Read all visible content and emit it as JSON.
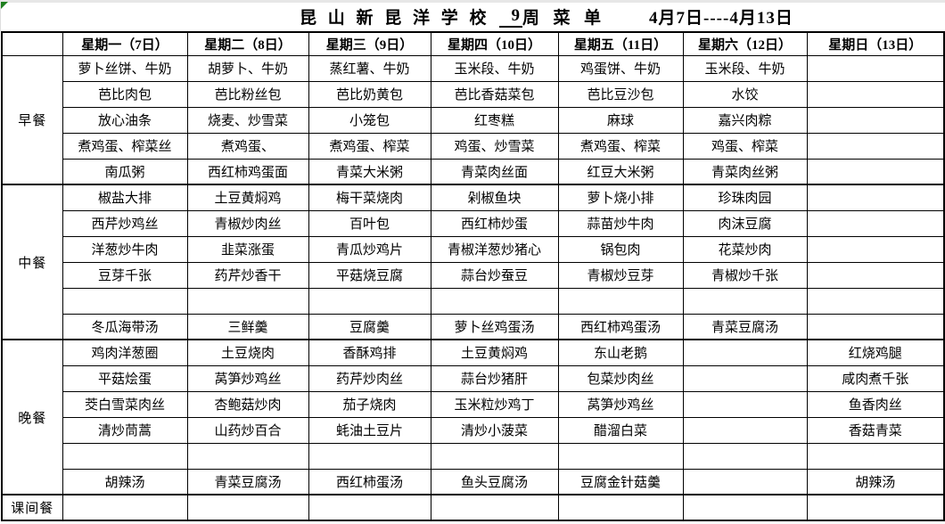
{
  "title": {
    "school": "昆 山 新 昆 洋 学 校",
    "week_number": "9",
    "week_label": "周  菜  单",
    "date_range": "4月7日----4月13日"
  },
  "table": {
    "corner_header": "",
    "day_headers": [
      "星期一（7日）",
      "星期二（8日）",
      "星期三（9日）",
      "星期四（10日）",
      "星期五（11日）",
      "星期六（12日）",
      "星期日（13日）"
    ],
    "sections": [
      {
        "key": "breakfast",
        "label": "早餐",
        "rows": [
          [
            "萝卜丝饼、牛奶",
            "胡萝卜、牛奶",
            "蒸红薯、牛奶",
            "玉米段、牛奶",
            "鸡蛋饼、牛奶",
            "玉米段、牛奶",
            ""
          ],
          [
            "芭比肉包",
            "芭比粉丝包",
            "芭比奶黄包",
            "芭比香菇菜包",
            "芭比豆沙包",
            "水饺",
            ""
          ],
          [
            "放心油条",
            "烧麦、炒雪菜",
            "小笼包",
            "红枣糕",
            "麻球",
            "嘉兴肉粽",
            ""
          ],
          [
            "煮鸡蛋、榨菜丝",
            "煮鸡蛋、",
            "煮鸡蛋、榨菜",
            "鸡蛋、炒雪菜",
            "煮鸡蛋、榨菜",
            "鸡蛋、榨菜",
            ""
          ],
          [
            "南瓜粥",
            "西红柿鸡蛋面",
            "青菜大米粥",
            "青菜肉丝面",
            "红豆大米粥",
            "青菜肉丝粥",
            ""
          ]
        ]
      },
      {
        "key": "lunch",
        "label": "中餐",
        "rows": [
          [
            "椒盐大排",
            "土豆黄焖鸡",
            "梅干菜烧肉",
            "剁椒鱼块",
            "萝卜烧小排",
            "珍珠肉园",
            ""
          ],
          [
            "西芹炒鸡丝",
            "青椒炒肉丝",
            "百叶包",
            "西红柿炒蛋",
            "蒜苗炒牛肉",
            "肉沫豆腐",
            ""
          ],
          [
            "洋葱炒牛肉",
            "韭菜涨蛋",
            "青瓜炒鸡片",
            "青椒洋葱炒猪心",
            "锅包肉",
            "花菜炒肉",
            ""
          ],
          [
            "豆芽千张",
            "药芹炒香干",
            "平菇烧豆腐",
            "蒜台炒蚕豆",
            "青椒炒豆芽",
            "青椒炒千张",
            ""
          ],
          [
            "",
            "",
            "",
            "",
            "",
            "",
            ""
          ],
          [
            "冬瓜海带汤",
            "三鲜羹",
            "豆腐羹",
            "萝卜丝鸡蛋汤",
            "西红柿鸡蛋汤",
            "青菜豆腐汤",
            ""
          ]
        ]
      },
      {
        "key": "dinner",
        "label": "晚餐",
        "rows": [
          [
            "鸡肉洋葱圈",
            "土豆烧肉",
            "香酥鸡排",
            "土豆黄焖鸡",
            "东山老鹅",
            "",
            "红烧鸡腿"
          ],
          [
            "平菇烩蛋",
            "莴笋炒鸡丝",
            "药芹炒肉丝",
            "蒜台炒猪肝",
            "包菜炒肉丝",
            "",
            "咸肉煮千张"
          ],
          [
            "茭白雪菜肉丝",
            "杏鲍菇炒肉",
            "茄子烧肉",
            "玉米粒炒鸡丁",
            "莴笋炒鸡丝",
            "",
            "鱼香肉丝"
          ],
          [
            "清炒茼蒿",
            "山药炒百合",
            "蚝油土豆片",
            "清炒小菠菜",
            "醋溜白菜",
            "",
            "香菇青菜"
          ],
          [
            "",
            "",
            "",
            "",
            "",
            "",
            ""
          ],
          [
            "胡辣汤",
            "青菜豆腐汤",
            "西红柿蛋汤",
            "鱼头豆腐汤",
            "豆腐金针菇羹",
            "",
            "胡辣汤"
          ]
        ]
      },
      {
        "key": "snack",
        "label": "课间餐",
        "rows": [
          [
            "",
            "",
            "",
            "",
            "",
            "",
            ""
          ]
        ]
      }
    ]
  },
  "decorations": {
    "corner_triangle_color": "#1e7e1e",
    "border_color": "#000000"
  }
}
